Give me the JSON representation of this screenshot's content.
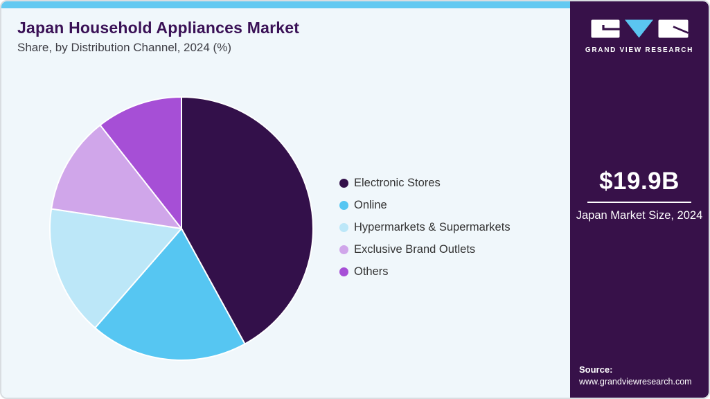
{
  "header": {
    "title": "Japan Household Appliances Market",
    "subtitle": "Share, by Distribution Channel, 2024 (%)"
  },
  "chart_data": {
    "type": "pie",
    "title": "Japan Household Appliances Market Share, by Distribution Channel, 2024 (%)",
    "categories": [
      "Electronic Stores",
      "Online",
      "Hypermarkets & Supermarkets",
      "Exclusive Brand Outlets",
      "Others"
    ],
    "values": [
      42.0,
      19.4,
      16.0,
      12.0,
      10.6
    ],
    "unit": "%",
    "colors": [
      "#33104a",
      "#56c6f2",
      "#bce7f8",
      "#d0a6ea",
      "#a64fd6"
    ],
    "start_angle_deg": 0,
    "direction": "clockwise",
    "legend_position": "right",
    "slice_border_color": "#ffffff"
  },
  "sidebar": {
    "brand": "GRAND VIEW RESEARCH",
    "market_size_value": "$19.9B",
    "market_size_label": "Japan Market Size, 2024",
    "source_label": "Source:",
    "source_url": "www.grandviewresearch.com"
  },
  "colors": {
    "accent_bar": "#63c9f1",
    "sidebar_background": "#371149",
    "card_background": "#f0f7fb",
    "title_text": "#3a1156",
    "logo_triangle": "#5bc5f0"
  }
}
